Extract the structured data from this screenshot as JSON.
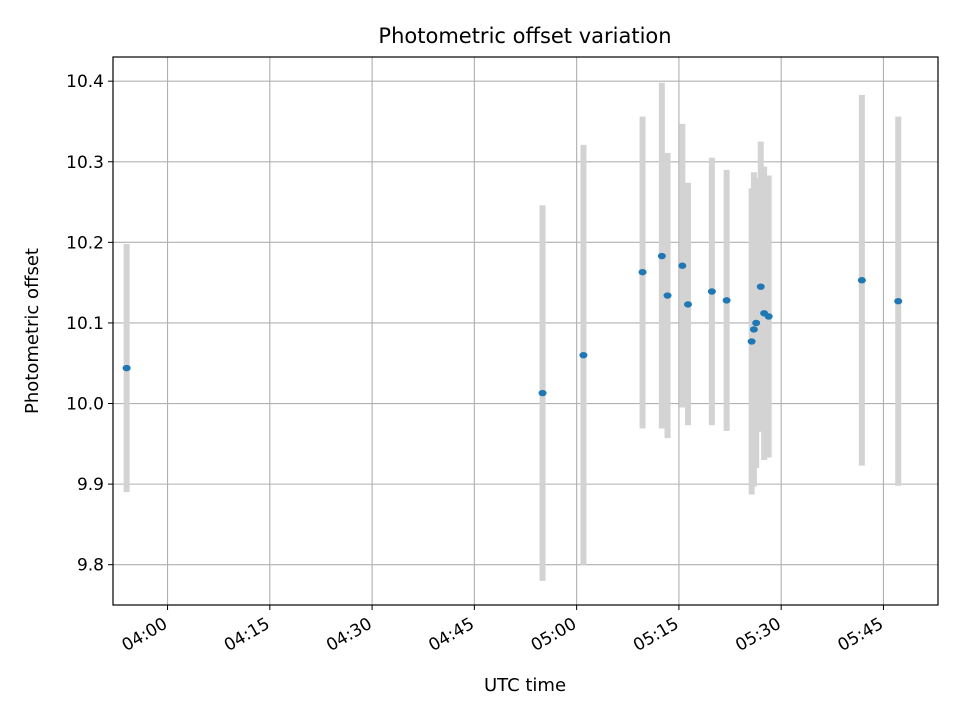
{
  "chart_data": {
    "type": "scatter",
    "title": "Photometric offset variation",
    "xlabel": "UTC time",
    "ylabel": "Photometric offset",
    "x_axis": "time (UTC, hh:mm)",
    "xlim": [
      "03:52",
      "05:53"
    ],
    "ylim": [
      9.75,
      10.43
    ],
    "x_ticks": [
      "04:00",
      "04:15",
      "04:30",
      "04:45",
      "05:00",
      "05:15",
      "05:30",
      "05:45"
    ],
    "y_ticks": [
      9.8,
      9.9,
      10.0,
      10.1,
      10.2,
      10.3,
      10.4
    ],
    "grid": true,
    "marker_color": "#1f77b4",
    "errorbar_color": "#d3d3d3",
    "points": [
      {
        "t": "03:54:00",
        "y": 10.044,
        "lo": 9.89,
        "hi": 10.198
      },
      {
        "t": "04:55:00",
        "y": 10.013,
        "lo": 9.78,
        "hi": 10.246
      },
      {
        "t": "05:01:00",
        "y": 10.06,
        "lo": 9.8,
        "hi": 10.321
      },
      {
        "t": "05:09:40",
        "y": 10.163,
        "lo": 9.969,
        "hi": 10.356
      },
      {
        "t": "05:12:30",
        "y": 10.183,
        "lo": 9.969,
        "hi": 10.398
      },
      {
        "t": "05:13:20",
        "y": 10.134,
        "lo": 9.957,
        "hi": 10.311
      },
      {
        "t": "05:15:30",
        "y": 10.171,
        "lo": 9.995,
        "hi": 10.347
      },
      {
        "t": "05:16:20",
        "y": 10.123,
        "lo": 9.973,
        "hi": 10.274
      },
      {
        "t": "05:19:50",
        "y": 10.139,
        "lo": 9.973,
        "hi": 10.305
      },
      {
        "t": "05:22:00",
        "y": 10.128,
        "lo": 9.966,
        "hi": 10.29
      },
      {
        "t": "05:25:40",
        "y": 10.077,
        "lo": 9.887,
        "hi": 10.267
      },
      {
        "t": "05:26:00",
        "y": 10.092,
        "lo": 9.897,
        "hi": 10.287
      },
      {
        "t": "05:26:20",
        "y": 10.1,
        "lo": 9.92,
        "hi": 10.28
      },
      {
        "t": "05:27:00",
        "y": 10.145,
        "lo": 9.965,
        "hi": 10.325
      },
      {
        "t": "05:27:30",
        "y": 10.112,
        "lo": 9.93,
        "hi": 10.294
      },
      {
        "t": "05:28:10",
        "y": 10.108,
        "lo": 9.933,
        "hi": 10.283
      },
      {
        "t": "05:41:50",
        "y": 10.153,
        "lo": 9.923,
        "hi": 10.383
      },
      {
        "t": "05:47:10",
        "y": 10.127,
        "lo": 9.898,
        "hi": 10.356
      }
    ]
  }
}
